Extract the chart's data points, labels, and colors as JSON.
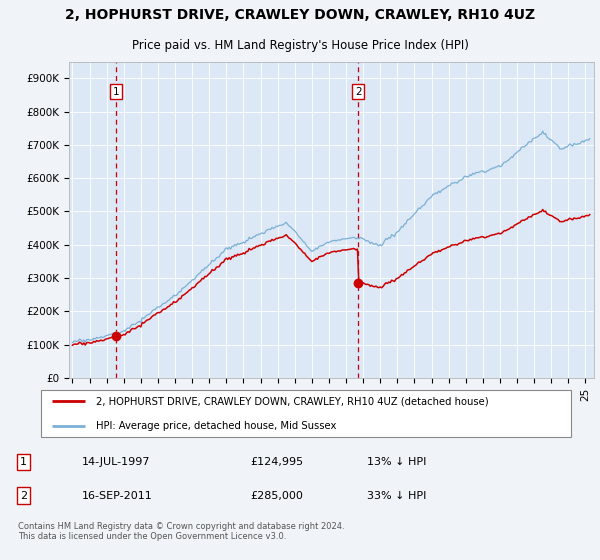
{
  "title": "2, HOPHURST DRIVE, CRAWLEY DOWN, CRAWLEY, RH10 4UZ",
  "subtitle": "Price paid vs. HM Land Registry's House Price Index (HPI)",
  "ylabel_ticks": [
    "£0",
    "£100K",
    "£200K",
    "£300K",
    "£400K",
    "£500K",
    "£600K",
    "£700K",
    "£800K",
    "£900K"
  ],
  "ytick_values": [
    0,
    100000,
    200000,
    300000,
    400000,
    500000,
    600000,
    700000,
    800000,
    900000
  ],
  "ylim": [
    0,
    950000
  ],
  "xlim_start": 1994.8,
  "xlim_end": 2025.5,
  "sale1_x": 1997.54,
  "sale1_y": 124995,
  "sale2_x": 2011.71,
  "sale2_y": 285000,
  "sale1_date": "14-JUL-1997",
  "sale1_price": "£124,995",
  "sale1_hpi": "13% ↓ HPI",
  "sale2_date": "16-SEP-2011",
  "sale2_price": "£285,000",
  "sale2_hpi": "33% ↓ HPI",
  "legend_line1": "2, HOPHURST DRIVE, CRAWLEY DOWN, CRAWLEY, RH10 4UZ (detached house)",
  "legend_line2": "HPI: Average price, detached house, Mid Sussex",
  "footnote": "Contains HM Land Registry data © Crown copyright and database right 2024.\nThis data is licensed under the Open Government Licence v3.0.",
  "line_color_red": "#cc0000",
  "line_color_blue": "#7bb0d4",
  "background_color": "#f0f4f8",
  "plot_bg_color": "#dce8f5",
  "grid_color": "#ffffff",
  "dashed_vline_color": "#cc0000",
  "title_fontsize": 10,
  "subtitle_fontsize": 8.5,
  "tick_fontsize": 7.5,
  "legend_fontsize": 7.5,
  "annotation_fontsize": 7.5
}
